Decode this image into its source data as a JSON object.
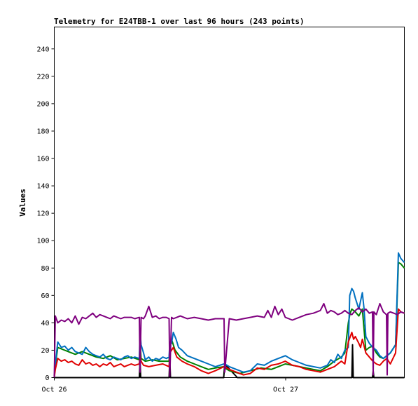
{
  "chart_data": {
    "type": "line",
    "title": "Telemetry for E24TBB-1 over last 96 hours (243 points)",
    "xlabel": "",
    "ylabel": "Values",
    "xlim": [
      0,
      100
    ],
    "ylim": [
      0,
      256
    ],
    "yticks": [
      0,
      20,
      40,
      60,
      80,
      100,
      120,
      140,
      160,
      180,
      200,
      220,
      240
    ],
    "xticks": [
      {
        "x": 0,
        "label": "Oct 26"
      },
      {
        "x": 66.1,
        "label": "Oct 27"
      }
    ],
    "grid": false,
    "legend": "none",
    "series": [
      {
        "color": "#000000",
        "x": [
          0,
          24.3,
          24.5,
          24.7,
          32.8,
          33.0,
          33.2,
          48.4,
          48.7,
          52.3,
          85.0,
          85.2,
          85.4,
          90.9,
          91.1,
          91.3,
          100
        ],
        "y": [
          0,
          0,
          12,
          0,
          0,
          14,
          0,
          0,
          10,
          0,
          0,
          24,
          0,
          0,
          5,
          0,
          0
        ]
      },
      {
        "color": "#008000",
        "x": [
          0,
          0.3,
          1,
          2,
          4,
          6,
          8,
          10,
          12,
          14,
          16,
          18,
          20,
          22,
          24.3,
          24.5,
          24.8,
          26,
          28,
          30,
          32.8,
          33.0,
          33.5,
          34.5,
          36,
          38,
          40,
          42,
          44,
          46,
          48.5,
          48.7,
          50,
          53,
          56,
          59,
          62,
          64,
          66,
          68,
          70,
          72,
          74,
          76,
          78,
          80,
          82,
          83,
          84,
          84.5,
          85,
          86,
          87,
          88,
          89,
          90,
          91,
          92,
          93,
          94,
          95,
          96,
          97.5,
          98.3,
          99,
          100
        ],
        "y": [
          0,
          9,
          22,
          21,
          19,
          17,
          19,
          17,
          15,
          14,
          16,
          13,
          14,
          15,
          13,
          27,
          14,
          12,
          13,
          12,
          12,
          24,
          28,
          20,
          15,
          12,
          10,
          8,
          6,
          7,
          8,
          7,
          5,
          3,
          5,
          7,
          6,
          8,
          10,
          9,
          8,
          7,
          6,
          5,
          8,
          12,
          15,
          18,
          40,
          47,
          50,
          48,
          45,
          50,
          20,
          22,
          23,
          18,
          15,
          14,
          16,
          18,
          24,
          84,
          83,
          80
        ]
      },
      {
        "color": "#0070C0",
        "x": [
          0,
          0.3,
          1,
          1.5,
          2,
          3,
          4,
          5,
          6,
          7,
          8,
          9,
          10,
          11,
          12,
          13,
          14,
          15,
          16,
          17,
          18,
          19,
          20,
          21,
          22,
          23,
          24.3,
          24.5,
          24.8,
          25.5,
          26,
          27,
          28,
          29,
          30,
          31,
          32,
          32.8,
          33.0,
          33.5,
          34,
          34.8,
          35.5,
          36.5,
          38,
          40,
          42,
          44,
          46,
          48.5,
          48.7,
          50,
          52,
          54,
          56,
          58,
          60,
          62,
          64,
          66,
          68,
          70,
          72,
          74,
          76,
          78,
          79,
          80,
          81,
          82,
          83,
          84,
          84.4,
          85,
          85.5,
          86,
          87,
          88,
          88.5,
          89,
          90,
          91,
          92,
          93,
          94,
          95,
          96,
          97.5,
          98.3,
          99,
          100
        ],
        "y": [
          0,
          10,
          26,
          24,
          22,
          23,
          20,
          22,
          19,
          18,
          17,
          22,
          19,
          17,
          16,
          15,
          17,
          14,
          13,
          15,
          14,
          13,
          15,
          16,
          14,
          15,
          14,
          35,
          24,
          18,
          13,
          15,
          12,
          14,
          13,
          15,
          14,
          15,
          26,
          25,
          33,
          28,
          22,
          20,
          16,
          14,
          12,
          10,
          8,
          10,
          10,
          8,
          6,
          4,
          5,
          10,
          9,
          12,
          14,
          16,
          13,
          11,
          9,
          8,
          7,
          9,
          13,
          11,
          17,
          14,
          20,
          22,
          60,
          65,
          63,
          58,
          50,
          62,
          50,
          30,
          25,
          22,
          20,
          16,
          14,
          16,
          18,
          24,
          91,
          87,
          84
        ]
      },
      {
        "color": "#E00000",
        "x": [
          0,
          0.3,
          1,
          2,
          3,
          4,
          5,
          6,
          7,
          8,
          9,
          10,
          11,
          12,
          13,
          14,
          15,
          16,
          17,
          18,
          19,
          20,
          21,
          22,
          23,
          24.3,
          24.5,
          24.8,
          25.5,
          27,
          29,
          31,
          32.8,
          33.0,
          33.5,
          34,
          35,
          36.5,
          38,
          40,
          42,
          44,
          46,
          48.5,
          48.7,
          50,
          52,
          54,
          56,
          58,
          60,
          62,
          64,
          66,
          68,
          70,
          72,
          74,
          76,
          78,
          80,
          82,
          83,
          84,
          85,
          85.5,
          86,
          87,
          87.5,
          88,
          89,
          90,
          91,
          92,
          93,
          94,
          95,
          96,
          97.5,
          98.3,
          99,
          100
        ],
        "y": [
          0,
          6,
          14,
          12,
          13,
          11,
          12,
          10,
          9,
          13,
          10,
          11,
          9,
          10,
          8,
          10,
          9,
          11,
          8,
          9,
          10,
          8,
          9,
          10,
          9,
          10,
          17,
          12,
          9,
          8,
          9,
          10,
          8,
          18,
          20,
          22,
          15,
          12,
          10,
          8,
          5,
          3,
          5,
          8,
          8,
          6,
          4,
          2,
          3,
          7,
          6,
          9,
          10,
          12,
          9,
          8,
          6,
          5,
          4,
          6,
          8,
          12,
          10,
          26,
          33,
          28,
          30,
          25,
          22,
          28,
          18,
          15,
          12,
          10,
          9,
          12,
          14,
          10,
          18,
          50,
          48,
          47
        ]
      },
      {
        "color": "#7F007F",
        "x": [
          0,
          0.3,
          1,
          2,
          3,
          4,
          5,
          6,
          7,
          8,
          9,
          10,
          11,
          12,
          13,
          14,
          15,
          16,
          17,
          18,
          19,
          20,
          21,
          22,
          23,
          24.3,
          24.5,
          24.8,
          25.5,
          26,
          27,
          28,
          29,
          30,
          31,
          32,
          32.8,
          33.0,
          33.5,
          34,
          35,
          36,
          37,
          38,
          40,
          42,
          44,
          46,
          48.5,
          48.7,
          50,
          52,
          54,
          56,
          58,
          60,
          61,
          62,
          63,
          64,
          65,
          66,
          67,
          68,
          70,
          72,
          74,
          76,
          77,
          78,
          79,
          80,
          81,
          82,
          83,
          84,
          85,
          86,
          87,
          88,
          89,
          90,
          90.9,
          91.1,
          91.3,
          92,
          93,
          94,
          94.9,
          95.1,
          95.3,
          96,
          97,
          98,
          99,
          100
        ],
        "y": [
          0,
          45,
          40,
          42,
          41,
          43,
          40,
          45,
          39,
          44,
          43,
          45,
          47,
          44,
          46,
          45,
          44,
          43,
          45,
          44,
          43,
          44,
          44,
          44,
          43,
          44,
          4,
          44,
          43,
          45,
          52,
          44,
          45,
          43,
          44,
          44,
          43,
          1,
          44,
          43,
          44,
          45,
          44,
          43,
          44,
          43,
          42,
          43,
          43,
          4,
          43,
          42,
          43,
          44,
          45,
          44,
          49,
          44,
          52,
          46,
          50,
          44,
          43,
          42,
          44,
          46,
          47,
          49,
          54,
          47,
          49,
          48,
          46,
          47,
          49,
          47,
          46,
          49,
          51,
          48,
          50,
          47,
          48,
          2,
          48,
          46,
          54,
          48,
          46,
          2,
          47,
          48,
          47,
          46,
          48,
          47
        ]
      }
    ]
  }
}
